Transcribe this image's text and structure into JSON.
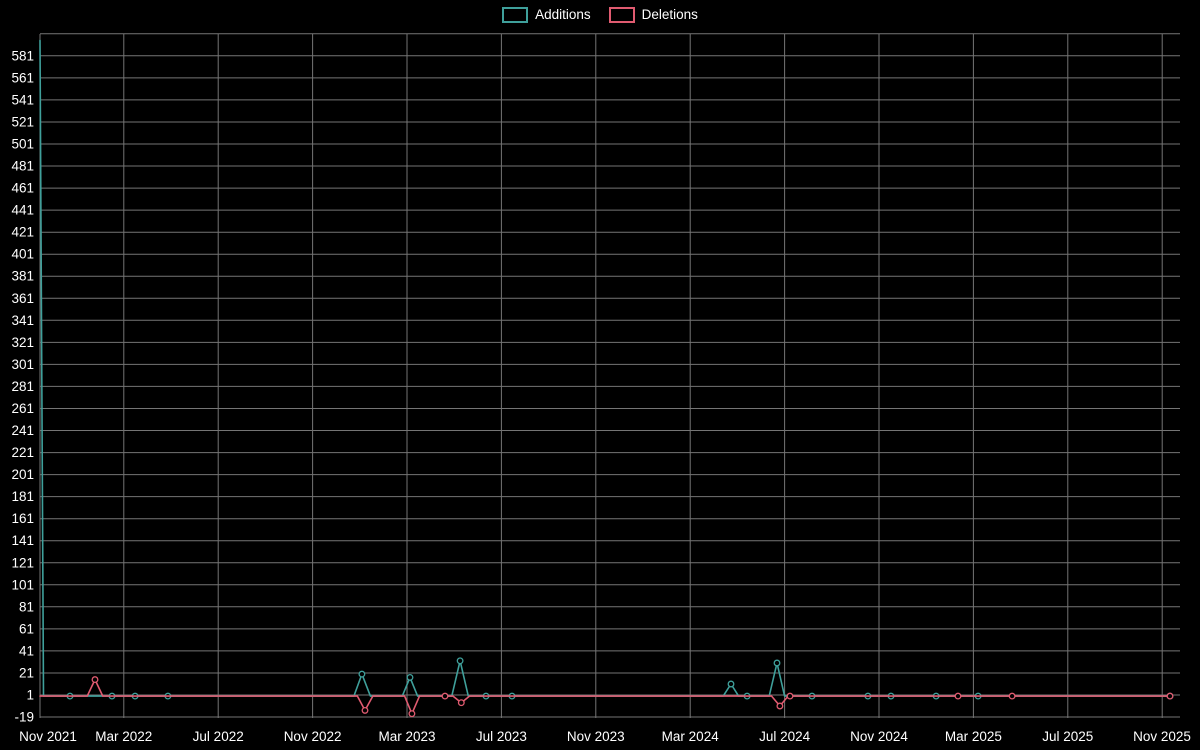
{
  "legend": {
    "items": [
      {
        "label": "Additions",
        "color": "#3fa09b"
      },
      {
        "label": "Deletions",
        "color": "#e05b70"
      }
    ]
  },
  "chart_data": {
    "type": "line",
    "title": "",
    "background": "#000000",
    "text_color": "#ffffff",
    "grid_color": "#757575",
    "grid": true,
    "legend_position": "top-center",
    "x_axis": {
      "unit": "months since Nov 2021",
      "ticks": [
        {
          "label": "Nov 2021",
          "m": 0,
          "grid": false
        },
        {
          "label": "Mar 2022",
          "m": 3.55,
          "grid": true
        },
        {
          "label": "Jul 2022",
          "m": 7.55,
          "grid": true
        },
        {
          "label": "Nov 2022",
          "m": 11.55,
          "grid": true
        },
        {
          "label": "Mar 2023",
          "m": 15.55,
          "grid": true
        },
        {
          "label": "Jul 2023",
          "m": 19.55,
          "grid": true
        },
        {
          "label": "Nov 2023",
          "m": 23.55,
          "grid": true
        },
        {
          "label": "Mar 2024",
          "m": 27.55,
          "grid": true
        },
        {
          "label": "Jul 2024",
          "m": 31.55,
          "grid": true
        },
        {
          "label": "Nov 2024",
          "m": 35.55,
          "grid": true
        },
        {
          "label": "Mar 2025",
          "m": 39.55,
          "grid": true
        },
        {
          "label": "Jul 2025",
          "m": 43.55,
          "grid": true
        },
        {
          "label": "Nov 2025",
          "m": 47.55,
          "grid": true
        }
      ]
    },
    "y_axis": {
      "min": -21,
      "max": 601,
      "top_gridline_value": 601,
      "ticks": [
        -19,
        1,
        21,
        41,
        61,
        81,
        101,
        121,
        141,
        161,
        181,
        201,
        221,
        241,
        261,
        281,
        301,
        321,
        341,
        361,
        381,
        401,
        421,
        441,
        461,
        481,
        501,
        521,
        541,
        561,
        581
      ]
    },
    "series": [
      {
        "name": "Additions",
        "color": "#3fa09b",
        "points": [
          [
            0,
            595
          ],
          [
            0.15,
            0
          ],
          [
            13.3,
            0
          ],
          [
            13.64,
            20
          ],
          [
            14.0,
            0
          ],
          [
            15.35,
            0
          ],
          [
            15.68,
            17
          ],
          [
            16.0,
            0
          ],
          [
            17.45,
            0
          ],
          [
            17.8,
            32
          ],
          [
            18.15,
            0
          ],
          [
            28.95,
            0
          ],
          [
            29.28,
            11
          ],
          [
            29.6,
            0
          ],
          [
            30.9,
            0
          ],
          [
            31.23,
            30
          ],
          [
            31.55,
            0
          ],
          [
            47.88,
            0
          ]
        ],
        "markers": [
          [
            1.27,
            0
          ],
          [
            3.05,
            0
          ],
          [
            4.03,
            0
          ],
          [
            5.42,
            0
          ],
          [
            13.64,
            20
          ],
          [
            15.68,
            17
          ],
          [
            17.8,
            32
          ],
          [
            18.9,
            0
          ],
          [
            20.0,
            0
          ],
          [
            29.28,
            11
          ],
          [
            29.96,
            0
          ],
          [
            31.23,
            30
          ],
          [
            32.71,
            0
          ],
          [
            35.08,
            0
          ],
          [
            36.06,
            0
          ],
          [
            37.97,
            0
          ],
          [
            39.75,
            0
          ],
          [
            47.88,
            0
          ]
        ]
      },
      {
        "name": "Deletions",
        "color": "#e05b70",
        "points": [
          [
            0,
            0
          ],
          [
            2.0,
            0
          ],
          [
            2.33,
            15
          ],
          [
            2.66,
            0
          ],
          [
            13.45,
            0
          ],
          [
            13.77,
            -13
          ],
          [
            14.1,
            0
          ],
          [
            15.45,
            0
          ],
          [
            15.76,
            -16
          ],
          [
            16.08,
            0
          ],
          [
            17.5,
            0
          ],
          [
            17.85,
            -6
          ],
          [
            18.2,
            0
          ],
          [
            31.0,
            0
          ],
          [
            31.35,
            -9
          ],
          [
            31.7,
            0
          ],
          [
            47.88,
            0
          ]
        ],
        "markers": [
          [
            2.33,
            15
          ],
          [
            13.77,
            -13
          ],
          [
            15.76,
            -16
          ],
          [
            17.16,
            0
          ],
          [
            17.85,
            -6
          ],
          [
            31.35,
            -9
          ],
          [
            31.78,
            0
          ],
          [
            38.9,
            0
          ],
          [
            41.19,
            0
          ],
          [
            47.88,
            0
          ]
        ]
      }
    ]
  }
}
